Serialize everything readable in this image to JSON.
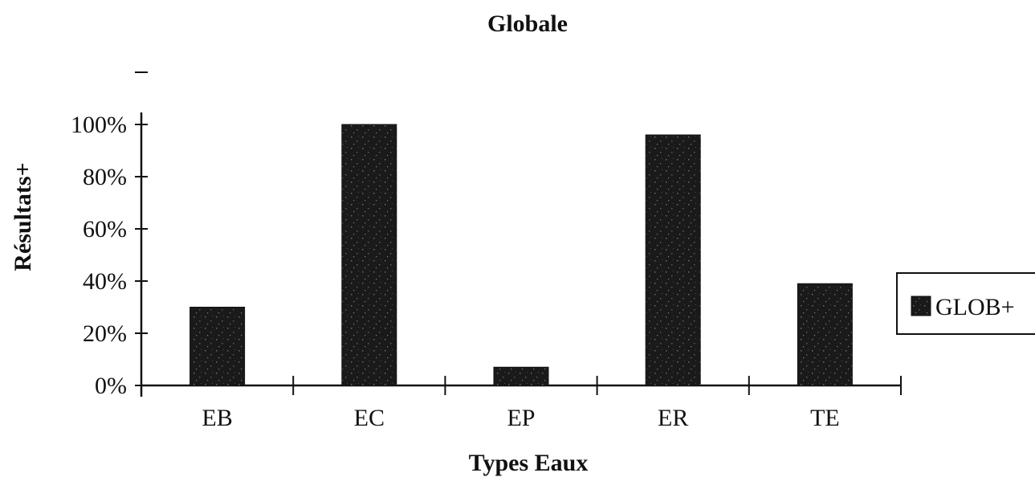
{
  "chart_data": {
    "type": "bar",
    "title": "Globale",
    "xlabel": "Types Eaux",
    "ylabel": "Résultats+",
    "categories": [
      "EB",
      "EC",
      "EP",
      "ER",
      "TE"
    ],
    "series": [
      {
        "name": "GLOB+",
        "values": [
          30,
          100,
          7,
          96,
          39
        ],
        "color": "#1a1a1a"
      }
    ],
    "ylim": [
      0,
      120
    ],
    "yticks": [
      0,
      20,
      40,
      60,
      80,
      100
    ],
    "ytick_labels": [
      "0%",
      "20%",
      "40%",
      "60%",
      "80%",
      "100%"
    ],
    "grid": false,
    "legend_position": "right"
  }
}
